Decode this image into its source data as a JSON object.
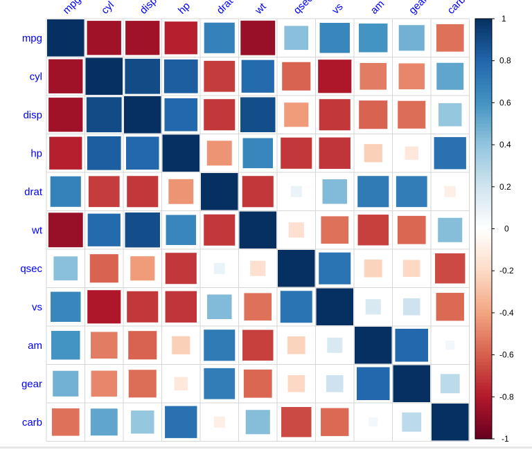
{
  "chart_data": {
    "type": "heatmap",
    "style": "correlation-matrix-squares",
    "variables": [
      "mpg",
      "cyl",
      "disp",
      "hp",
      "drat",
      "wt",
      "qsec",
      "vs",
      "am",
      "gear",
      "carb"
    ],
    "values": [
      [
        1.0,
        -0.85,
        -0.85,
        -0.78,
        0.68,
        -0.87,
        0.42,
        0.66,
        0.6,
        0.48,
        -0.55
      ],
      [
        -0.85,
        1.0,
        0.9,
        0.83,
        -0.7,
        0.78,
        -0.59,
        -0.81,
        -0.52,
        -0.49,
        0.53
      ],
      [
        -0.85,
        0.9,
        1.0,
        0.79,
        -0.71,
        0.89,
        -0.43,
        -0.71,
        -0.59,
        -0.56,
        0.39
      ],
      [
        -0.78,
        0.83,
        0.79,
        1.0,
        -0.45,
        0.66,
        -0.71,
        -0.72,
        -0.24,
        -0.13,
        0.75
      ],
      [
        0.68,
        -0.7,
        -0.71,
        -0.45,
        1.0,
        -0.71,
        0.09,
        0.44,
        0.71,
        0.7,
        -0.09
      ],
      [
        -0.87,
        0.78,
        0.89,
        0.66,
        -0.71,
        1.0,
        -0.17,
        -0.55,
        -0.69,
        -0.58,
        0.43
      ],
      [
        0.42,
        -0.59,
        -0.43,
        -0.71,
        0.09,
        -0.17,
        1.0,
        0.74,
        -0.23,
        -0.21,
        -0.66
      ],
      [
        0.66,
        -0.81,
        -0.71,
        -0.72,
        0.44,
        -0.55,
        0.74,
        1.0,
        0.17,
        0.21,
        -0.57
      ],
      [
        0.6,
        -0.52,
        -0.59,
        -0.24,
        0.71,
        -0.69,
        -0.23,
        0.17,
        1.0,
        0.79,
        0.06
      ],
      [
        0.48,
        -0.49,
        -0.56,
        -0.13,
        0.7,
        -0.58,
        -0.21,
        0.21,
        0.79,
        1.0,
        0.27
      ],
      [
        -0.55,
        0.53,
        0.39,
        0.75,
        -0.09,
        0.43,
        -0.66,
        -0.57,
        0.06,
        0.27,
        1.0
      ]
    ],
    "colorbar": {
      "range": [
        -1,
        1
      ],
      "ticks": [
        1,
        0.8,
        0.6,
        0.4,
        0.2,
        0,
        -0.2,
        -0.4,
        -0.6,
        -0.8,
        -1
      ],
      "tick_labels": [
        "1",
        "0.8",
        "0.6",
        "0.4",
        "0.2",
        "0",
        "-0.2",
        "-0.4",
        "-0.6",
        "-0.8",
        "-1"
      ]
    },
    "colors": {
      "negative_end": "#67001f",
      "positive_end": "#053061",
      "label_color": "#0000ff",
      "grid_color": "#d6d6d6"
    },
    "legend_placement": "right",
    "grid": true
  }
}
